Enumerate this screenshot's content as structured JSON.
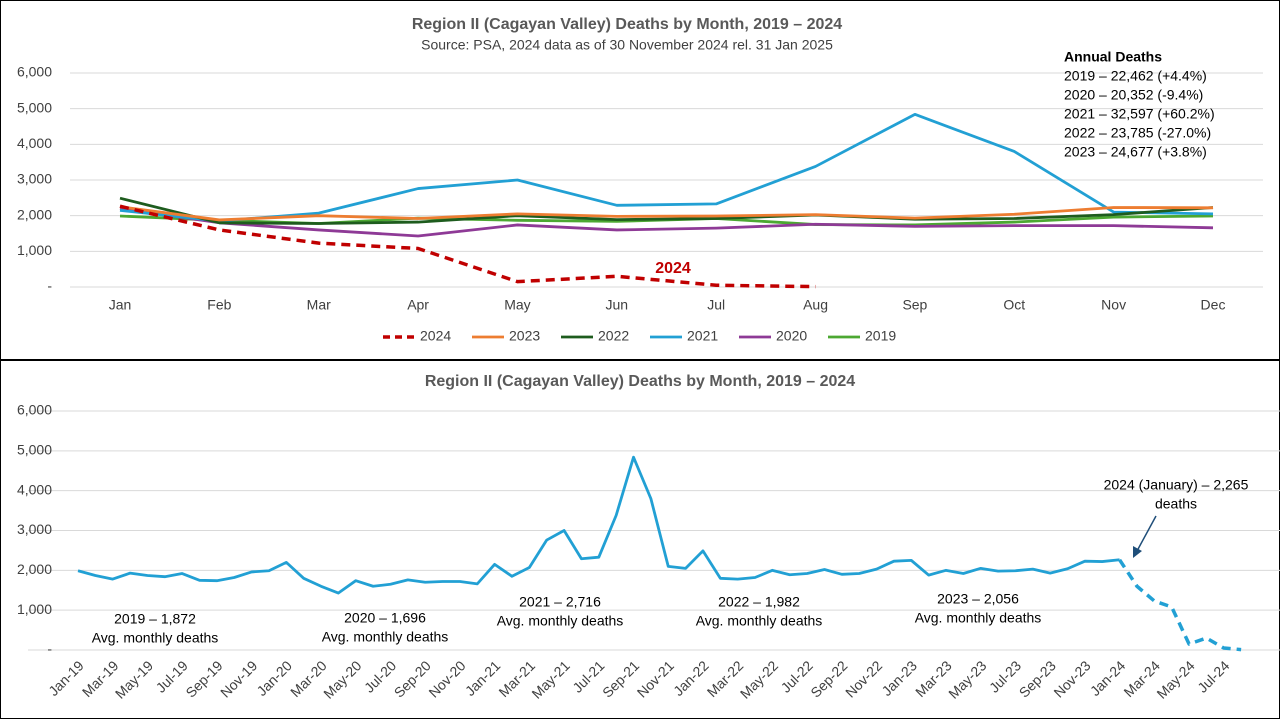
{
  "chart_data": [
    {
      "type": "line",
      "title": "Region II (Cagayan Valley) Deaths by Month, 2019 – 2024",
      "subtitle": "Source: PSA, 2024 data as of 30 November 2024 rel. 31 Jan 2025",
      "categories": [
        "Jan",
        "Feb",
        "Mar",
        "Apr",
        "May",
        "Jun",
        "Jul",
        "Aug",
        "Sep",
        "Oct",
        "Nov",
        "Dec"
      ],
      "ylim": [
        0,
        6000
      ],
      "yticks": [
        {
          "value": 0,
          "label": "-"
        },
        {
          "value": 1000,
          "label": "1,000"
        },
        {
          "value": 2000,
          "label": "2,000"
        },
        {
          "value": 3000,
          "label": "3,000"
        },
        {
          "value": 4000,
          "label": "4,000"
        },
        {
          "value": 5000,
          "label": "5,000"
        },
        {
          "value": 6000,
          "label": "6,000"
        }
      ],
      "grid": true,
      "legend": "bottom",
      "series": [
        {
          "name": "2024",
          "color": "#c00000",
          "dashed": true,
          "values": [
            2265,
            1600,
            1230,
            1080,
            150,
            300,
            50,
            10,
            null,
            null,
            null,
            null
          ]
        },
        {
          "name": "2023",
          "color": "#ed7d31",
          "values": [
            2250,
            1880,
            2000,
            1920,
            2050,
            1980,
            1990,
            2030,
            1930,
            2040,
            2230,
            2220
          ]
        },
        {
          "name": "2022",
          "color": "#1e5c1e",
          "values": [
            2490,
            1800,
            1780,
            1820,
            2000,
            1890,
            1920,
            2020,
            1900,
            1920,
            2030,
            2230
          ]
        },
        {
          "name": "2021",
          "color": "#22a0d4",
          "values": [
            2150,
            1850,
            2070,
            2760,
            3000,
            2290,
            2330,
            3380,
            4840,
            3800,
            2100,
            2050
          ]
        },
        {
          "name": "2020",
          "color": "#8e3a96",
          "values": [
            2200,
            1800,
            1600,
            1430,
            1740,
            1600,
            1650,
            1760,
            1700,
            1720,
            1720,
            1660
          ]
        },
        {
          "name": "2019",
          "color": "#4ca832",
          "values": [
            1990,
            1870,
            1780,
            1930,
            1870,
            1840,
            1920,
            1750,
            1740,
            1820,
            1960,
            1990
          ]
        }
      ],
      "series_label": "2024",
      "annual_title": "Annual Deaths",
      "annual_lines": [
        "2019 – 22,462 (+4.4%)",
        "2020 – 20,352 (-9.4%)",
        "2021 – 32,597 (+60.2%)",
        "2022 – 23,785 (-27.0%)",
        "2023 – 24,677 (+3.8%)"
      ]
    },
    {
      "type": "line",
      "title": "Region II (Cagayan Valley) Deaths by Month, 2019 – 2024",
      "categories": [
        "Jan-19",
        null,
        "Mar-19",
        null,
        "May-19",
        null,
        "Jul-19",
        null,
        "Sep-19",
        null,
        "Nov-19",
        null,
        "Jan-20",
        null,
        "Mar-20",
        null,
        "May-20",
        null,
        "Jul-20",
        null,
        "Sep-20",
        null,
        "Nov-20",
        null,
        "Jan-21",
        null,
        "Mar-21",
        null,
        "May-21",
        null,
        "Jul-21",
        null,
        "Sep-21",
        null,
        "Nov-21",
        null,
        "Jan-22",
        null,
        "Mar-22",
        null,
        "May-22",
        null,
        "Jul-22",
        null,
        "Sep-22",
        null,
        "Nov-22",
        null,
        "Jan-23",
        null,
        "Mar-23",
        null,
        "May-23",
        null,
        "Jul-23",
        null,
        "Sep-23",
        null,
        "Nov-23",
        null,
        "Jan-24",
        null,
        "Mar-24",
        null,
        "May-24",
        null,
        "Jul-24",
        null
      ],
      "ylim": [
        0,
        6000
      ],
      "yticks": [
        {
          "value": 0,
          "label": "-"
        },
        {
          "value": 1000,
          "label": "1,000"
        },
        {
          "value": 2000,
          "label": "2,000"
        },
        {
          "value": 3000,
          "label": "3,000"
        },
        {
          "value": 4000,
          "label": "4,000"
        },
        {
          "value": 5000,
          "label": "5,000"
        },
        {
          "value": 6000,
          "label": "6,000"
        }
      ],
      "grid": true,
      "series": [
        {
          "color": "#22a0d4",
          "values": [
            1990,
            1870,
            1780,
            1930,
            1870,
            1840,
            1920,
            1750,
            1740,
            1820,
            1960,
            1990,
            2200,
            1800,
            1600,
            1430,
            1740,
            1600,
            1650,
            1760,
            1700,
            1720,
            1720,
            1660,
            2150,
            1850,
            2070,
            2760,
            3000,
            2290,
            2330,
            3380,
            4840,
            3800,
            2100,
            2050,
            2490,
            1800,
            1780,
            1820,
            2000,
            1890,
            1920,
            2020,
            1900,
            1920,
            2030,
            2230,
            2250,
            1880,
            2000,
            1920,
            2050,
            1980,
            1990,
            2030,
            1930,
            2040,
            2230,
            2220,
            2265,
            null,
            null,
            null,
            null,
            null,
            null,
            null
          ]
        },
        {
          "color": "#22a0d4",
          "dashed": true,
          "values": [
            null,
            null,
            null,
            null,
            null,
            null,
            null,
            null,
            null,
            null,
            null,
            null,
            null,
            null,
            null,
            null,
            null,
            null,
            null,
            null,
            null,
            null,
            null,
            null,
            null,
            null,
            null,
            null,
            null,
            null,
            null,
            null,
            null,
            null,
            null,
            null,
            null,
            null,
            null,
            null,
            null,
            null,
            null,
            null,
            null,
            null,
            null,
            null,
            null,
            null,
            null,
            null,
            null,
            null,
            null,
            null,
            null,
            null,
            null,
            null,
            2265,
            1600,
            1230,
            1080,
            150,
            300,
            50,
            10
          ]
        }
      ],
      "annotations": [
        {
          "text": "2019 – 1,872",
          "subtext": "Avg. monthly deaths"
        },
        {
          "text": "2020 – 1,696",
          "subtext": "Avg. monthly deaths"
        },
        {
          "text": "2021 – 2,716",
          "subtext": "Avg. monthly deaths"
        },
        {
          "text": "2022 – 1,982",
          "subtext": "Avg. monthly deaths"
        },
        {
          "text": "2023 – 2,056",
          "subtext": "Avg. monthly deaths"
        },
        {
          "text": "2024 (January) – 2,265",
          "subtext": "deaths"
        }
      ]
    }
  ]
}
